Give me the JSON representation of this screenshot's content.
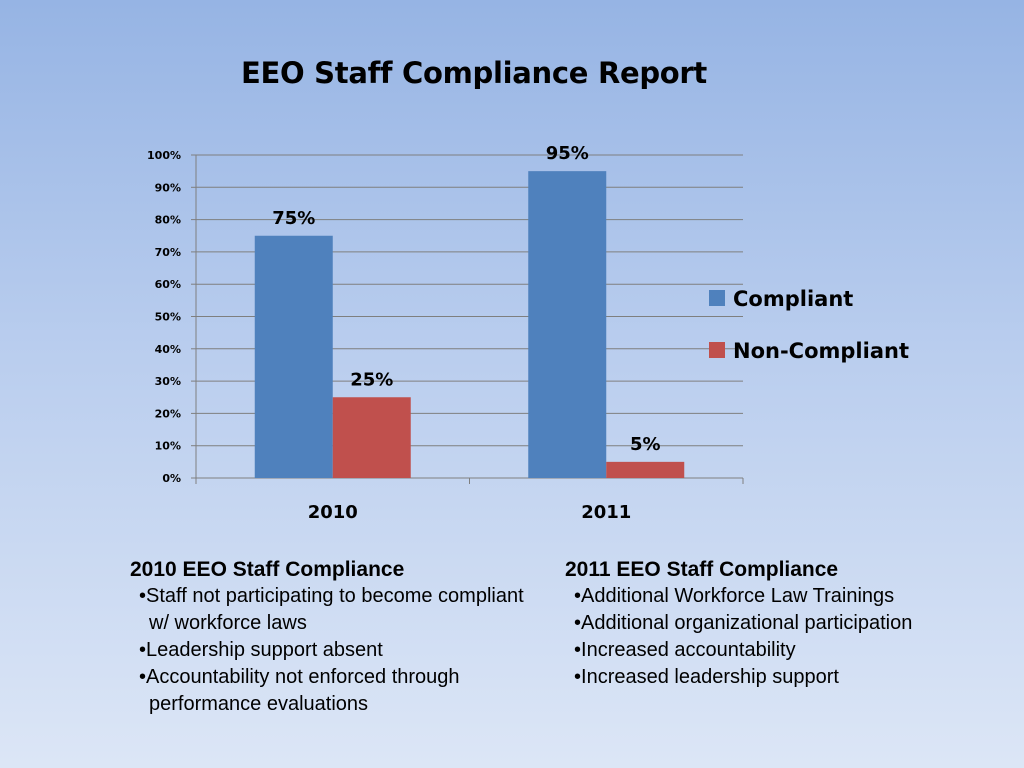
{
  "title": "EEO Staff Compliance Report",
  "chart_data": {
    "type": "bar",
    "categories": [
      "2010",
      "2011"
    ],
    "series": [
      {
        "name": "Compliant",
        "values": [
          75,
          95
        ],
        "labels": [
          "75%",
          "95%"
        ],
        "color": "#4f81bd"
      },
      {
        "name": "Non-Compliant",
        "values": [
          25,
          5
        ],
        "labels": [
          "25%",
          "5%"
        ],
        "color": "#c0504d"
      }
    ],
    "ylim": [
      0,
      100
    ],
    "yticks": [
      "0%",
      "10%",
      "20%",
      "30%",
      "40%",
      "50%",
      "60%",
      "70%",
      "80%",
      "90%",
      "100%"
    ],
    "grid": true,
    "legend_position": "right"
  },
  "notes": [
    {
      "heading": "2010 EEO Staff Compliance",
      "items": [
        "Staff not participating to become compliant w/ workforce laws",
        "Leadership support absent",
        "Accountability not enforced through performance evaluations"
      ]
    },
    {
      "heading": "2011 EEO Staff Compliance",
      "items": [
        "Additional Workforce Law Trainings",
        "Additional organizational participation",
        "Increased accountability",
        "Increased leadership support"
      ]
    }
  ]
}
